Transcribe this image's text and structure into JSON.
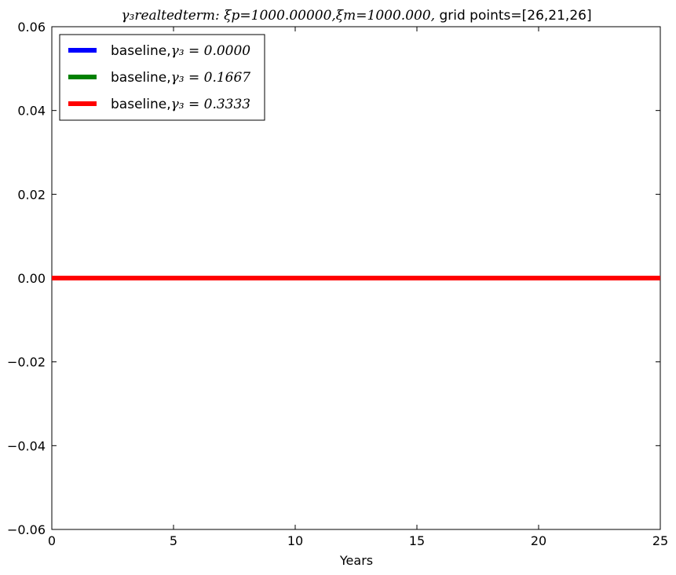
{
  "chart_data": {
    "type": "line",
    "title": {
      "math_part": "γ₃realtedterm: ξp=1000.00000,ξm=1000.000,",
      "text_part": " grid points=[26,21,26]"
    },
    "xlabel": "Years",
    "ylabel": "",
    "xlim": [
      0,
      25
    ],
    "ylim": [
      -0.06,
      0.06
    ],
    "x_ticks": [
      0,
      5,
      10,
      15,
      20,
      25
    ],
    "x_tick_labels": [
      "0",
      "5",
      "10",
      "15",
      "20",
      "25"
    ],
    "y_ticks": [
      0.06,
      0.04,
      0.02,
      0.0,
      -0.02,
      -0.04,
      -0.06
    ],
    "y_tick_labels": [
      "0.06",
      "0.04",
      "0.02",
      "0.00",
      "−0.02",
      "−0.04",
      "−0.06"
    ],
    "grid": false,
    "legend_position": "top-left",
    "series": [
      {
        "name": "baseline,γ₃ = 0.0000",
        "legend_prefix": "baseline,",
        "legend_math": "γ₃ = 0.0000",
        "color": "#0000ff",
        "x": [
          0,
          25
        ],
        "y": [
          0.0,
          0.0
        ]
      },
      {
        "name": "baseline,γ₃ = 0.1667",
        "legend_prefix": "baseline,",
        "legend_math": "γ₃ = 0.1667",
        "color": "#008000",
        "x": [
          0,
          25
        ],
        "y": [
          0.0,
          0.0
        ]
      },
      {
        "name": "baseline,γ₃ = 0.3333",
        "legend_prefix": "baseline,",
        "legend_math": "γ₃ = 0.3333",
        "color": "#ff0000",
        "x": [
          0,
          25
        ],
        "y": [
          0.0,
          0.0
        ]
      }
    ]
  }
}
